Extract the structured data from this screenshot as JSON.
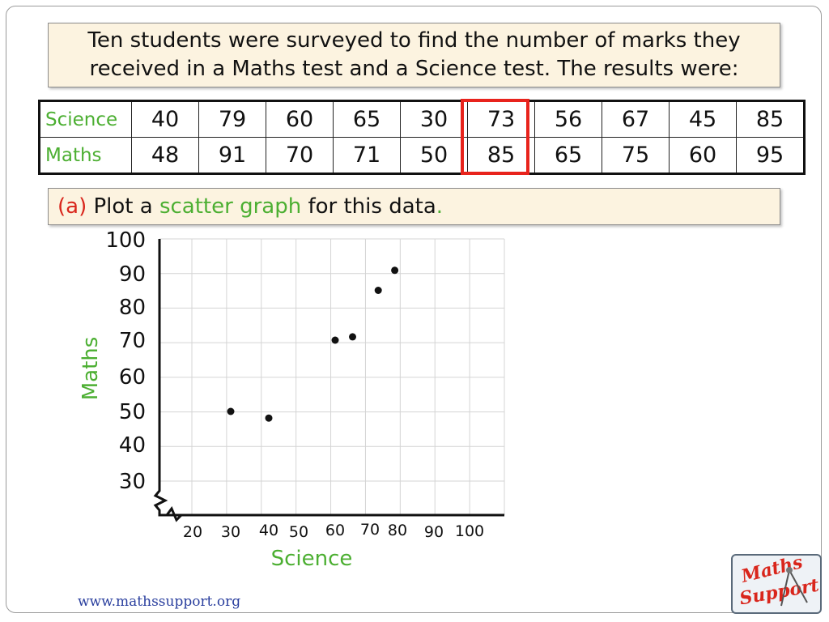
{
  "intro": {
    "line1": "Ten students were surveyed to find the number of marks they",
    "line2": "received in a Maths test and a Science test. The results were:"
  },
  "table": {
    "science_label": "Science",
    "maths_label": "Maths",
    "science": [
      40,
      79,
      60,
      65,
      30,
      73,
      56,
      67,
      45,
      85
    ],
    "maths": [
      48,
      91,
      70,
      71,
      50,
      85,
      65,
      75,
      60,
      95
    ],
    "highlighted_column": 5,
    "highlight_color": "#e8231c"
  },
  "question": {
    "part": "(a)",
    "text_before": "Plot a",
    "highlight": "scatter graph",
    "text_after": "for this data",
    "end": "."
  },
  "chart_data": {
    "type": "scatter",
    "xlabel": "Science",
    "ylabel": "Maths",
    "x_ticks": [
      20,
      30,
      40,
      50,
      60,
      70,
      80,
      90,
      100
    ],
    "y_ticks": [
      30,
      40,
      50,
      60,
      70,
      80,
      90,
      100
    ],
    "xlim": [
      20,
      100
    ],
    "ylim": [
      20,
      100
    ],
    "axis_breaks": true,
    "grid": true,
    "label_color": "#4caf32",
    "points": [
      {
        "x": 30,
        "y": 50
      },
      {
        "x": 40,
        "y": 48
      },
      {
        "x": 60,
        "y": 70
      },
      {
        "x": 65,
        "y": 71
      },
      {
        "x": 73,
        "y": 85
      },
      {
        "x": 79,
        "y": 91
      }
    ]
  },
  "footer": {
    "url": "www.mathssupport.org"
  },
  "logo": {
    "line1": "Maths",
    "line2": "Support"
  }
}
